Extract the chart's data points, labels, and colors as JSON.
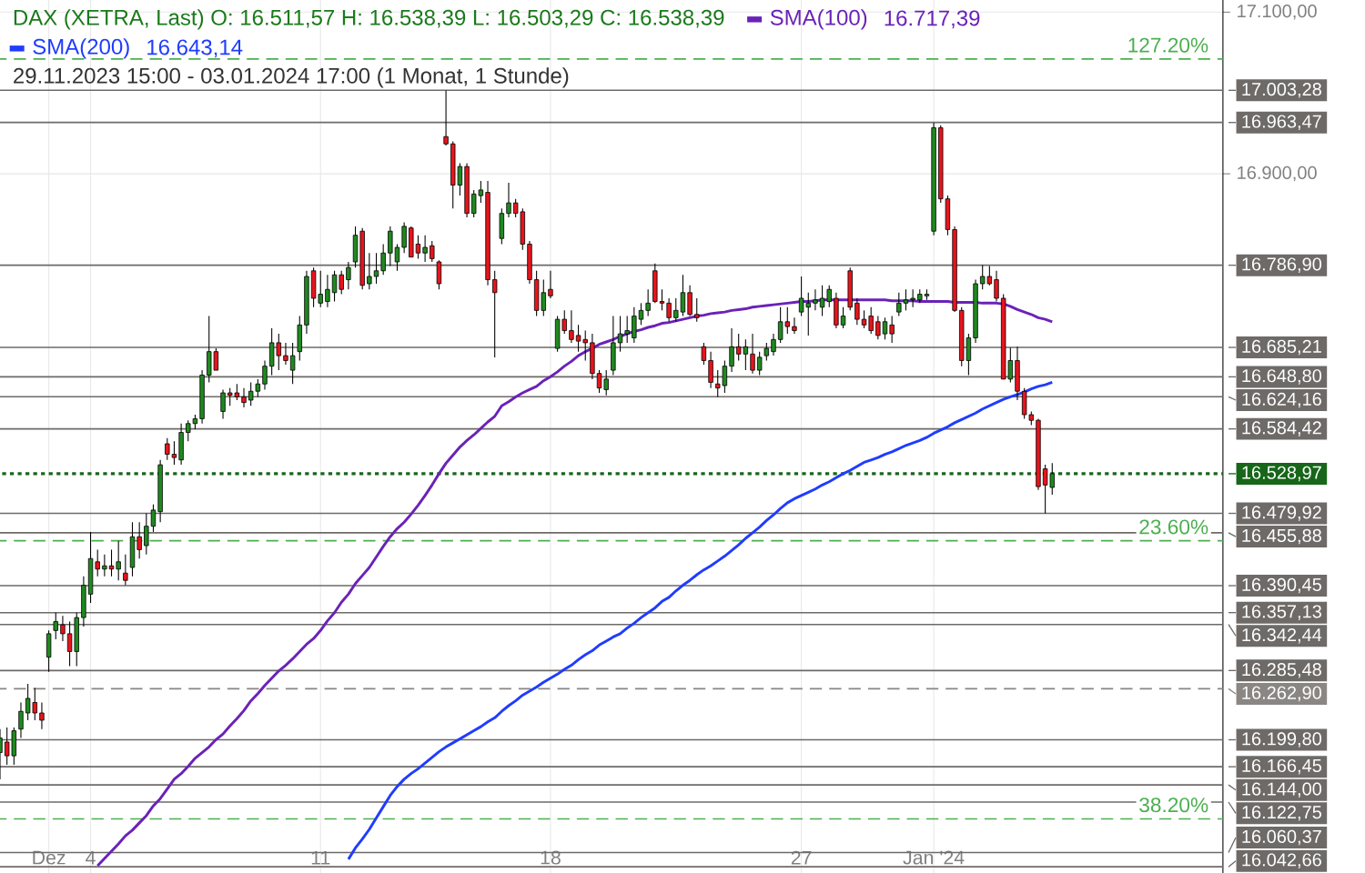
{
  "chart_data": {
    "type": "candlestick",
    "title": "DAX (XETRA, Last)  O: 16.511,57  H: 16.538,39  L: 16.503,29  C: 16.538,39",
    "subtitle": "29.11.2023 15:00 - 03.01.2024 17:00  (1 Monat, 1 Stunde)",
    "categories": [
      null,
      null,
      null,
      null,
      null,
      null,
      null,
      "Dez",
      null,
      null,
      null,
      null,
      null,
      "4",
      null,
      null,
      null,
      null,
      null,
      null,
      null,
      null,
      null,
      null,
      null,
      null,
      null,
      null,
      null,
      null,
      null,
      null,
      null,
      null,
      null,
      null,
      null,
      null,
      null,
      null,
      null,
      null,
      null,
      null,
      null,
      null,
      "11",
      null,
      null,
      null,
      null,
      null,
      null,
      null,
      null,
      null,
      null,
      null,
      null,
      null,
      null,
      null,
      null,
      null,
      null,
      null,
      null,
      null,
      null,
      null,
      null,
      null,
      null,
      null,
      null,
      null,
      null,
      null,
      null,
      "18",
      null,
      null,
      null,
      null,
      null,
      null,
      null,
      null,
      null,
      null,
      null,
      null,
      null,
      null,
      null,
      null,
      null,
      null,
      null,
      null,
      null,
      null,
      null,
      null,
      null,
      null,
      null,
      null,
      null,
      null,
      null,
      null,
      null,
      null,
      null,
      "27",
      null,
      null,
      null,
      null,
      null,
      null,
      null,
      null,
      null,
      null,
      null,
      null,
      null,
      null,
      null,
      null,
      null,
      null,
      "Jan '24",
      null,
      null,
      null,
      null,
      null,
      null,
      null,
      null,
      null,
      null,
      null,
      null,
      null,
      null,
      null,
      null,
      null
    ],
    "ohlc": [
      [
        16184,
        16213,
        16151,
        16202
      ],
      [
        16197,
        16215,
        16169,
        16180
      ],
      [
        16180,
        16215,
        16169,
        16211
      ],
      [
        16213,
        16246,
        16202,
        16235
      ],
      [
        16233,
        16269,
        16224,
        16251
      ],
      [
        16246,
        16264,
        16224,
        16233
      ],
      [
        16233,
        16246,
        16213,
        16224
      ],
      [
        16302,
        16335,
        16284,
        16331
      ],
      [
        16335,
        16357,
        16324,
        16346
      ],
      [
        16342,
        16353,
        16322,
        16331
      ],
      [
        16331,
        16346,
        16291,
        16309
      ],
      [
        16309,
        16357,
        16291,
        16351
      ],
      [
        16351,
        16402,
        16340,
        16391
      ],
      [
        16380,
        16457,
        16369,
        16424
      ],
      [
        16420,
        16435,
        16402,
        16411
      ],
      [
        16411,
        16429,
        16402,
        16415
      ],
      [
        16415,
        16435,
        16402,
        16411
      ],
      [
        16411,
        16446,
        16397,
        16420
      ],
      [
        16406,
        16429,
        16391,
        16397
      ],
      [
        16413,
        16469,
        16402,
        16451
      ],
      [
        16451,
        16469,
        16424,
        16435
      ],
      [
        16440,
        16480,
        16429,
        16464
      ],
      [
        16464,
        16491,
        16457,
        16484
      ],
      [
        16482,
        16546,
        16469,
        16540
      ],
      [
        16566,
        16573,
        16546,
        16553
      ],
      [
        16553,
        16569,
        16540,
        16549
      ],
      [
        16546,
        16591,
        16540,
        16580
      ],
      [
        16580,
        16595,
        16569,
        16591
      ],
      [
        16591,
        16602,
        16584,
        16597
      ],
      [
        16597,
        16657,
        16591,
        16651
      ],
      [
        16651,
        16724,
        16642,
        16680
      ],
      [
        16680,
        16684,
        16657,
        16657
      ],
      [
        16606,
        16633,
        16597,
        16629
      ],
      [
        16629,
        16635,
        16613,
        16626
      ],
      [
        16629,
        16640,
        16620,
        16624
      ],
      [
        16624,
        16635,
        16611,
        16617
      ],
      [
        16620,
        16642,
        16613,
        16631
      ],
      [
        16631,
        16646,
        16624,
        16640
      ],
      [
        16640,
        16669,
        16633,
        16662
      ],
      [
        16662,
        16709,
        16651,
        16691
      ],
      [
        16691,
        16702,
        16657,
        16675
      ],
      [
        16675,
        16691,
        16664,
        16669
      ],
      [
        16657,
        16691,
        16640,
        16675
      ],
      [
        16680,
        16724,
        16669,
        16713
      ],
      [
        16713,
        16780,
        16702,
        16773
      ],
      [
        16780,
        16784,
        16735,
        16746
      ],
      [
        16740,
        16780,
        16735,
        16751
      ],
      [
        16742,
        16775,
        16735,
        16757
      ],
      [
        16753,
        16780,
        16742,
        16775
      ],
      [
        16775,
        16780,
        16751,
        16757
      ],
      [
        16769,
        16791,
        16757,
        16784
      ],
      [
        16791,
        16835,
        16784,
        16824
      ],
      [
        16829,
        16833,
        16757,
        16762
      ],
      [
        16764,
        16802,
        16757,
        16773
      ],
      [
        16773,
        16802,
        16764,
        16780
      ],
      [
        16780,
        16813,
        16775,
        16802
      ],
      [
        16802,
        16835,
        16786,
        16829
      ],
      [
        16791,
        16813,
        16780,
        16809
      ],
      [
        16809,
        16840,
        16802,
        16835
      ],
      [
        16833,
        16835,
        16797,
        16797
      ],
      [
        16813,
        16824,
        16795,
        16802
      ],
      [
        16802,
        16824,
        16791,
        16809
      ],
      [
        16811,
        16817,
        16791,
        16795
      ],
      [
        16791,
        16793,
        16757,
        16764
      ],
      [
        16946,
        17003,
        16935,
        16937
      ],
      [
        16937,
        16940,
        16857,
        16886
      ],
      [
        16886,
        16913,
        16873,
        16909
      ],
      [
        16909,
        16913,
        16846,
        16851
      ],
      [
        16851,
        16880,
        16846,
        16875
      ],
      [
        16873,
        16891,
        16864,
        16880
      ],
      [
        16877,
        16891,
        16762,
        16769
      ],
      [
        16769,
        16780,
        16673,
        16753
      ],
      [
        16820,
        16857,
        16813,
        16851
      ],
      [
        16851,
        16889,
        16846,
        16864
      ],
      [
        16864,
        16869,
        16846,
        16851
      ],
      [
        16853,
        16857,
        16806,
        16813
      ],
      [
        16813,
        16817,
        16764,
        16769
      ],
      [
        16769,
        16780,
        16724,
        16731
      ],
      [
        16731,
        16769,
        16724,
        16753
      ],
      [
        16757,
        16780,
        16746,
        16749
      ],
      [
        16684,
        16724,
        16680,
        16720
      ],
      [
        16720,
        16731,
        16702,
        16706
      ],
      [
        16706,
        16731,
        16691,
        16695
      ],
      [
        16700,
        16713,
        16680,
        16693
      ],
      [
        16695,
        16706,
        16669,
        16691
      ],
      [
        16691,
        16702,
        16646,
        16653
      ],
      [
        16653,
        16657,
        16629,
        16635
      ],
      [
        16633,
        16657,
        16626,
        16646
      ],
      [
        16657,
        16724,
        16651,
        16691
      ],
      [
        16691,
        16724,
        16680,
        16702
      ],
      [
        16702,
        16724,
        16691,
        16706
      ],
      [
        16697,
        16735,
        16691,
        16724
      ],
      [
        16720,
        16740,
        16713,
        16731
      ],
      [
        16731,
        16757,
        16724,
        16740
      ],
      [
        16780,
        16789,
        16740,
        16742
      ],
      [
        16742,
        16757,
        16731,
        16740
      ],
      [
        16740,
        16746,
        16717,
        16722
      ],
      [
        16722,
        16746,
        16717,
        16731
      ],
      [
        16729,
        16775,
        16724,
        16753
      ],
      [
        16753,
        16762,
        16724,
        16726
      ],
      [
        16726,
        16746,
        16717,
        16722
      ],
      [
        16686,
        16691,
        16664,
        16669
      ],
      [
        16669,
        16680,
        16635,
        16642
      ],
      [
        16640,
        16657,
        16624,
        16635
      ],
      [
        16638,
        16669,
        16629,
        16662
      ],
      [
        16662,
        16709,
        16655,
        16686
      ],
      [
        16686,
        16702,
        16669,
        16677
      ],
      [
        16677,
        16695,
        16657,
        16686
      ],
      [
        16677,
        16702,
        16653,
        16657
      ],
      [
        16657,
        16680,
        16651,
        16673
      ],
      [
        16675,
        16691,
        16669,
        16684
      ],
      [
        16680,
        16702,
        16675,
        16695
      ],
      [
        16695,
        16735,
        16691,
        16717
      ],
      [
        16717,
        16735,
        16702,
        16711
      ],
      [
        16711,
        16722,
        16702,
        16706
      ],
      [
        16729,
        16773,
        16724,
        16746
      ],
      [
        16735,
        16753,
        16700,
        16740
      ],
      [
        16740,
        16757,
        16731,
        16744
      ],
      [
        16735,
        16762,
        16724,
        16746
      ],
      [
        16742,
        16762,
        16735,
        16757
      ],
      [
        16746,
        16753,
        16709,
        16713
      ],
      [
        16713,
        16735,
        16709,
        16724
      ],
      [
        16780,
        16784,
        16731,
        16735
      ],
      [
        16740,
        16746,
        16713,
        16720
      ],
      [
        16720,
        16731,
        16709,
        16713
      ],
      [
        16724,
        16735,
        16702,
        16706
      ],
      [
        16717,
        16724,
        16695,
        16700
      ],
      [
        16702,
        16722,
        16695,
        16717
      ],
      [
        16713,
        16724,
        16691,
        16702
      ],
      [
        16729,
        16753,
        16724,
        16740
      ],
      [
        16740,
        16757,
        16731,
        16744
      ],
      [
        16744,
        16757,
        16735,
        16746
      ],
      [
        16744,
        16757,
        16740,
        16751
      ],
      [
        16749,
        16757,
        16744,
        16751
      ],
      [
        16829,
        16963,
        16824,
        16957
      ],
      [
        16957,
        16960,
        16864,
        16869
      ],
      [
        16869,
        16873,
        16824,
        16831
      ],
      [
        16831,
        16835,
        16729,
        16731
      ],
      [
        16731,
        16735,
        16662,
        16669
      ],
      [
        16669,
        16702,
        16651,
        16697
      ],
      [
        16697,
        16769,
        16691,
        16764
      ],
      [
        16764,
        16787,
        16757,
        16773
      ],
      [
        16773,
        16786,
        16762,
        16764
      ],
      [
        16769,
        16780,
        16742,
        16746
      ],
      [
        16746,
        16751,
        16646,
        16646
      ],
      [
        16646,
        16685,
        16642,
        16669
      ],
      [
        16669,
        16686,
        16620,
        16631
      ],
      [
        16631,
        16635,
        16597,
        16602
      ],
      [
        16602,
        16606,
        16589,
        16595
      ],
      [
        16595,
        16597,
        16509,
        16513
      ],
      [
        16535,
        16540,
        16480,
        16515
      ],
      [
        16512,
        16542,
        16503,
        16529
      ]
    ],
    "series": [
      {
        "name": "SMA(100)",
        "type": "line",
        "color": "#6a22b8",
        "values": [
          null,
          null,
          null,
          null,
          null,
          null,
          null,
          null,
          null,
          null,
          null,
          null,
          null,
          null,
          16044,
          16053,
          16062,
          16071,
          16081,
          16088,
          16097,
          16106,
          16118,
          16127,
          16139,
          16151,
          16158,
          16167,
          16177,
          16184,
          16191,
          16200,
          16207,
          16217,
          16226,
          16236,
          16248,
          16257,
          16267,
          16276,
          16285,
          16292,
          16300,
          16309,
          16318,
          16325,
          16335,
          16347,
          16357,
          16370,
          16380,
          16393,
          16403,
          16413,
          16426,
          16439,
          16451,
          16461,
          16469,
          16479,
          16490,
          16502,
          16515,
          16529,
          16542,
          16552,
          16562,
          16570,
          16577,
          16585,
          16593,
          16600,
          16613,
          16618,
          16624,
          16629,
          16633,
          16637,
          16644,
          16649,
          16655,
          16662,
          16668,
          16675,
          16680,
          16684,
          16689,
          16692,
          16695,
          16699,
          16702,
          16705,
          16707,
          16710,
          16712,
          16715,
          16716,
          16718,
          16720,
          16722,
          16724,
          16725,
          16727,
          16728,
          16729,
          16731,
          16732,
          16733,
          16735,
          16736,
          16737,
          16738,
          16739,
          16740,
          16741,
          16742,
          16742,
          16743,
          16744,
          16744,
          16744,
          16744,
          16744,
          16744,
          16744,
          16744,
          16744,
          16744,
          16743,
          16743,
          16743,
          16743,
          16742,
          16742,
          16742,
          16742,
          16742,
          16741,
          16741,
          16741,
          16741,
          16740,
          16740,
          16740,
          16739,
          16736,
          16732,
          16729,
          16726,
          16722,
          16720,
          16717
        ]
      },
      {
        "name": "SMA(200)",
        "type": "line",
        "color": "#1f3cff",
        "values": [
          null,
          null,
          null,
          null,
          null,
          null,
          null,
          null,
          null,
          null,
          null,
          null,
          null,
          null,
          null,
          null,
          null,
          null,
          null,
          null,
          null,
          null,
          null,
          null,
          null,
          null,
          null,
          null,
          null,
          null,
          null,
          null,
          null,
          null,
          null,
          null,
          null,
          null,
          null,
          null,
          null,
          null,
          null,
          null,
          null,
          null,
          null,
          null,
          null,
          null,
          16052,
          16066,
          16077,
          16089,
          16103,
          16117,
          16131,
          16142,
          16151,
          16158,
          16164,
          16171,
          16178,
          16185,
          16191,
          16196,
          16201,
          16206,
          16211,
          16216,
          16222,
          16227,
          16235,
          16242,
          16248,
          16255,
          16260,
          16265,
          16271,
          16276,
          16281,
          16287,
          16292,
          16299,
          16305,
          16310,
          16317,
          16322,
          16327,
          16331,
          16338,
          16344,
          16351,
          16357,
          16363,
          16371,
          16376,
          16384,
          16391,
          16397,
          16404,
          16410,
          16415,
          16421,
          16427,
          16434,
          16441,
          16449,
          16456,
          16463,
          16471,
          16478,
          16486,
          16493,
          16498,
          16502,
          16506,
          16510,
          16515,
          16519,
          16524,
          16529,
          16533,
          16538,
          16543,
          16546,
          16549,
          16553,
          16556,
          16560,
          16564,
          16567,
          16570,
          16574,
          16579,
          16583,
          16587,
          16592,
          16596,
          16600,
          16604,
          16609,
          16613,
          16617,
          16621,
          16624,
          16627,
          16630,
          16634,
          16637,
          16639,
          16642
        ]
      }
    ],
    "annotations": [
      "16.717,39",
      "16.643,14",
      {
        "text": "127.20%",
        "y": 17042
      },
      {
        "text": "23.60%",
        "y": 16446
      },
      {
        "text": "38.20%",
        "y": 16102
      }
    ],
    "ref_lines": [
      {
        "axis": "y",
        "value": 17042,
        "color": "#4caf50",
        "line_style": "dashed"
      },
      {
        "axis": "y",
        "value": 16446,
        "color": "#4caf50",
        "line_style": "dashed"
      },
      {
        "axis": "y",
        "value": 16102,
        "color": "#4caf50",
        "line_style": "dashed"
      },
      {
        "axis": "y",
        "value": 17003.28,
        "label": "17.003,28",
        "color": "#6e6a68"
      },
      {
        "axis": "y",
        "value": 16963.47,
        "label": "16.963,47",
        "color": "#6e6a68"
      },
      {
        "axis": "y",
        "value": 16786.9,
        "label": "16.786,90",
        "color": "#6e6a68"
      },
      {
        "axis": "y",
        "value": 16685.21,
        "label": "16.685,21",
        "color": "#6e6a68"
      },
      {
        "axis": "y",
        "value": 16648.8,
        "label": "16.648,80",
        "color": "#6e6a68"
      },
      {
        "axis": "y",
        "value": 16624.16,
        "label": "16.624,16",
        "color": "#6e6a68"
      },
      {
        "axis": "y",
        "value": 16584.42,
        "label": "16.584,42",
        "color": "#6e6a68"
      },
      {
        "axis": "y",
        "value": 16528.97,
        "label": "16.528,97",
        "color": "#17661a",
        "line_style": "dotted"
      },
      {
        "axis": "y",
        "value": 16479.92,
        "label": "16.479,92",
        "color": "#6e6a68"
      },
      {
        "axis": "y",
        "value": 16455.88,
        "label": "16.455,88",
        "color": "#6e6a68"
      },
      {
        "axis": "y",
        "value": 16390.45,
        "label": "16.390,45",
        "color": "#6e6a68"
      },
      {
        "axis": "y",
        "value": 16357.13,
        "label": "16.357,13",
        "color": "#6e6a68"
      },
      {
        "axis": "y",
        "value": 16342.44,
        "label": "16.342,44",
        "color": "#6e6a68"
      },
      {
        "axis": "y",
        "value": 16285.48,
        "label": "16.285,48",
        "color": "#6e6a68"
      },
      {
        "axis": "y",
        "value": 16262.9,
        "label": "16.262,90",
        "color": "#8a8684",
        "line_style": "dashed"
      },
      {
        "axis": "y",
        "value": 16199.8,
        "label": "16.199,80",
        "color": "#6e6a68"
      },
      {
        "axis": "y",
        "value": 16166.45,
        "label": "16.166,45",
        "color": "#6e6a68"
      },
      {
        "axis": "y",
        "value": 16144.0,
        "label": "16.144,00",
        "color": "#6e6a68"
      },
      {
        "axis": "y",
        "value": 16122.75,
        "label": "16.122,75",
        "color": "#6e6a68"
      },
      {
        "axis": "y",
        "value": 16060.37,
        "label": "16.060,37",
        "color": "#6e6a68"
      },
      {
        "axis": "y",
        "value": 16042.66,
        "label": "16.042,66",
        "color": "#6e6a68"
      }
    ],
    "ylim": [
      16035,
      17115
    ],
    "yticks": [
      {
        "value": 16900,
        "label": "16.900,00"
      },
      {
        "value": 17100,
        "label": "17.100,00"
      }
    ],
    "grid": true,
    "legend": "top left"
  }
}
